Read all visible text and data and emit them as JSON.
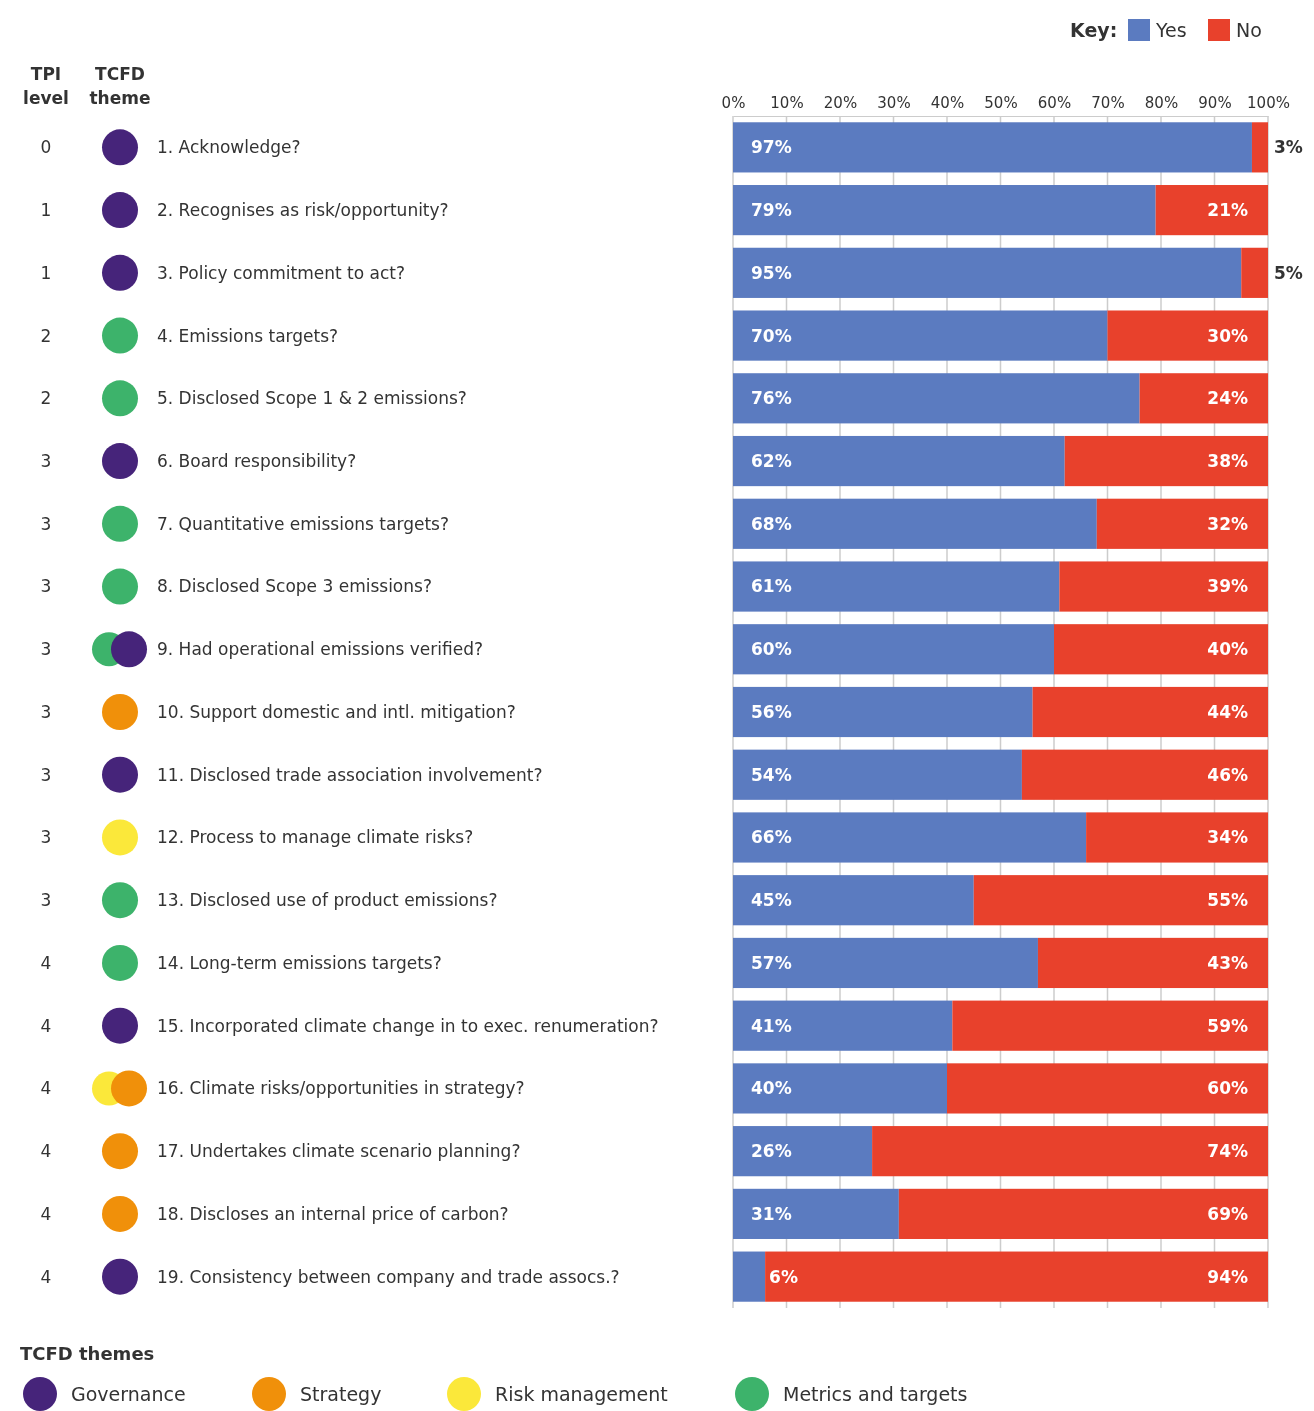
{
  "chart_data": {
    "type": "bar",
    "orientation": "horizontal",
    "stacked": true,
    "grid": "x",
    "legend": "top right",
    "legend_title": "Key:",
    "categories": [
      "1. Acknowledge?",
      "2. Recognises as risk/opportunity?",
      "3. Policy commitment to act?",
      "4. Emissions targets?",
      "5. Disclosed Scope 1 & 2 emissions?",
      "6. Board responsibility?",
      "7. Quantitative emissions targets?",
      "8. Disclosed Scope 3 emissions?",
      "9. Had operational emissions verified?",
      "10. Support domestic and intl. mitigation?",
      "11. Disclosed trade association involvement?",
      "12. Process to manage climate risks?",
      "13. Disclosed use of product emissions?",
      "14. Long-term emissions targets?",
      "15. Incorporated climate change in to exec. renumeration?",
      "16. Climate risks/opportunities in strategy?",
      "17. Undertakes climate scenario planning?",
      "18. Discloses an internal price of carbon?",
      "19. Consistency between company and trade assocs.?"
    ],
    "series": [
      {
        "name": "Yes",
        "color": "#5b7bc0",
        "values": [
          97,
          79,
          95,
          70,
          76,
          62,
          68,
          61,
          60,
          56,
          54,
          66,
          45,
          57,
          41,
          40,
          26,
          31,
          6
        ],
        "value_labels": [
          "97%",
          "79%",
          "95%",
          "70%",
          "76%",
          "62%",
          "68%",
          "61%",
          "60%",
          "56%",
          "54%",
          "66%",
          "45%",
          "57%",
          "41%",
          "40%",
          "26%",
          "31%",
          "6%"
        ]
      },
      {
        "name": "No",
        "color": "#e8412c",
        "values": [
          3,
          21,
          5,
          30,
          24,
          38,
          32,
          39,
          40,
          44,
          46,
          34,
          55,
          43,
          59,
          60,
          74,
          69,
          94
        ],
        "value_labels": [
          "3%",
          "21%",
          "5%",
          "30%",
          "24%",
          "38%",
          "32%",
          "39%",
          "40%",
          "44%",
          "46%",
          "34%",
          "55%",
          "43%",
          "59%",
          "60%",
          "74%",
          "69%",
          "94%"
        ]
      }
    ],
    "xlim": [
      0,
      100
    ],
    "xticks": [
      {
        "value": 0,
        "label": "0%"
      },
      {
        "value": 10,
        "label": "10%"
      },
      {
        "value": 20,
        "label": "20%"
      },
      {
        "value": 30,
        "label": "30%"
      },
      {
        "value": 40,
        "label": "40%"
      },
      {
        "value": 50,
        "label": "50%"
      },
      {
        "value": 60,
        "label": "60%"
      },
      {
        "value": 70,
        "label": "70%"
      },
      {
        "value": 80,
        "label": "80%"
      },
      {
        "value": 90,
        "label": "90%"
      },
      {
        "value": 100,
        "label": "100%"
      }
    ],
    "annotations": [
      "TPI level",
      "TCFD theme",
      "TCFD themes",
      "Governance",
      "Strategy",
      "Risk management",
      "Metrics and targets",
      "0",
      "1",
      "1",
      "2",
      "2",
      "3",
      "3",
      "3",
      "3",
      "3",
      "3",
      "3",
      "3",
      "4",
      "4",
      "4",
      "4",
      "4",
      "4"
    ]
  }
}
